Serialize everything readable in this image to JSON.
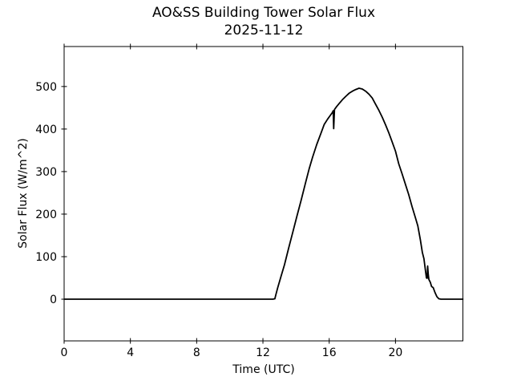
{
  "figure": {
    "title_line1": "AO&SS Building Tower Solar Flux",
    "title_line2": "2025-11-12"
  },
  "chart_data": {
    "type": "line",
    "title": "AO&SS Building Tower Solar Flux",
    "subtitle": "2025-11-12",
    "xlabel": "Time (UTC)",
    "ylabel": "Solar Flux (W/m^2)",
    "xlim": [
      0,
      24.07
    ],
    "ylim": [
      -98,
      594
    ],
    "xticks": [
      "0",
      "4",
      "8",
      "12",
      "16",
      "20"
    ],
    "xtick_values": [
      0,
      4,
      8,
      12,
      16,
      20
    ],
    "yticks": [
      "0",
      "100",
      "200",
      "300",
      "400",
      "500"
    ],
    "ytick_values": [
      0,
      100,
      200,
      300,
      400,
      500
    ],
    "grid": false,
    "legend_position": "none",
    "line_color": "#000000",
    "background_color": "#ffffff",
    "axis_color": "#000000",
    "series": [
      {
        "name": "solar_flux",
        "points": [
          [
            0,
            0
          ],
          [
            2,
            0
          ],
          [
            4,
            0
          ],
          [
            6,
            0
          ],
          [
            8,
            0
          ],
          [
            10,
            0
          ],
          [
            12,
            0
          ],
          [
            12.6,
            0
          ],
          [
            12.72,
            1
          ],
          [
            12.78,
            10
          ],
          [
            12.9,
            28
          ],
          [
            13.1,
            55
          ],
          [
            13.3,
            81
          ],
          [
            13.55,
            120
          ],
          [
            13.8,
            157
          ],
          [
            14.05,
            195
          ],
          [
            14.3,
            232
          ],
          [
            14.55,
            270
          ],
          [
            14.8,
            308
          ],
          [
            15.0,
            334
          ],
          [
            15.25,
            364
          ],
          [
            15.5,
            390
          ],
          [
            15.7,
            411
          ],
          [
            15.9,
            423
          ],
          [
            16.05,
            431
          ],
          [
            16.18,
            438
          ],
          [
            16.24,
            443
          ],
          [
            16.27,
            401
          ],
          [
            16.32,
            446
          ],
          [
            16.45,
            453
          ],
          [
            16.6,
            460
          ],
          [
            16.8,
            469
          ],
          [
            17.0,
            477
          ],
          [
            17.2,
            484
          ],
          [
            17.4,
            489
          ],
          [
            17.6,
            493
          ],
          [
            17.8,
            496
          ],
          [
            18.0,
            494
          ],
          [
            18.2,
            489
          ],
          [
            18.4,
            482
          ],
          [
            18.6,
            473
          ],
          [
            18.8,
            458
          ],
          [
            19.0,
            444
          ],
          [
            19.2,
            428
          ],
          [
            19.4,
            410
          ],
          [
            19.6,
            391
          ],
          [
            19.8,
            370
          ],
          [
            20.0,
            348
          ],
          [
            20.2,
            318
          ],
          [
            20.4,
            295
          ],
          [
            20.6,
            270
          ],
          [
            20.8,
            246
          ],
          [
            21.0,
            218
          ],
          [
            21.2,
            192
          ],
          [
            21.35,
            172
          ],
          [
            21.5,
            140
          ],
          [
            21.62,
            110
          ],
          [
            21.72,
            95
          ],
          [
            21.8,
            70
          ],
          [
            21.87,
            50
          ],
          [
            21.91,
            49
          ],
          [
            21.94,
            78
          ],
          [
            21.98,
            58
          ],
          [
            22.02,
            46
          ],
          [
            22.1,
            40
          ],
          [
            22.18,
            30
          ],
          [
            22.28,
            27
          ],
          [
            22.38,
            16
          ],
          [
            22.5,
            6
          ],
          [
            22.62,
            1
          ],
          [
            22.75,
            0
          ],
          [
            23.0,
            0
          ],
          [
            23.5,
            0
          ],
          [
            24.07,
            0
          ]
        ]
      }
    ]
  }
}
